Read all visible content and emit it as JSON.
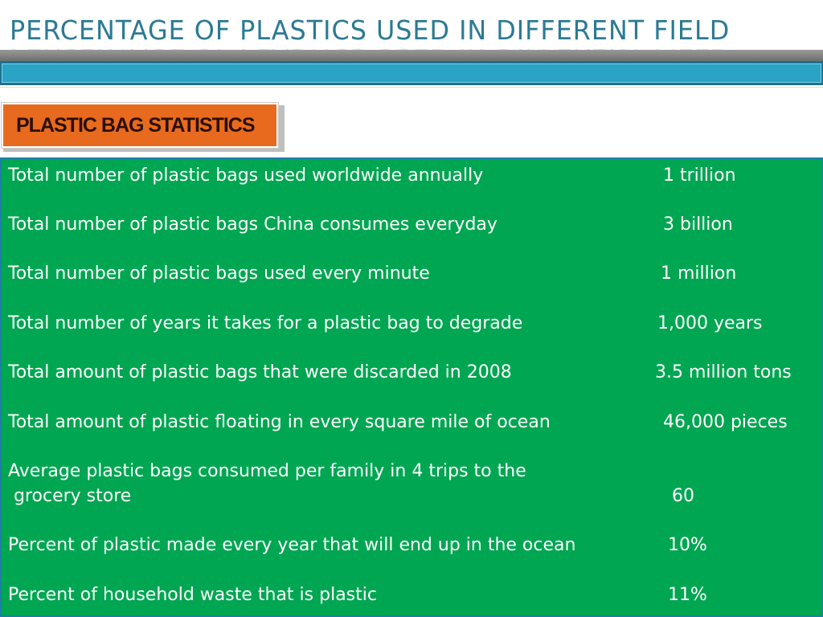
{
  "slide": {
    "title": "PERCENTAGE OF PLASTICS USED IN DIFFERENT FIELD",
    "badge": "PLASTIC BAG STATISTICS"
  },
  "stats": [
    {
      "label": "Total number of plastic bags used worldwide annually",
      "value": "1 trillion"
    },
    {
      "label": "Total number of plastic bags China consumes everyday",
      "value": "3 billion"
    },
    {
      "label": "Total number of plastic bags used every minute",
      "value": "1 million"
    },
    {
      "label": "Total number of years it takes for a plastic bag to degrade",
      "value": "1,000 years"
    },
    {
      "label": "Total amount of plastic bags that were discarded in 2008",
      "value": "3.5 million tons"
    },
    {
      "label": "Total amount of plastic floating in every square mile of ocean",
      "value": "46,000 pieces"
    },
    {
      "label": "Average plastic bags consumed per family in 4 trips to the\n grocery store",
      "value": "60"
    },
    {
      "label": "Percent of plastic made every year that will end up in the ocean",
      "value": "10%"
    },
    {
      "label": "Percent of household waste that is plastic",
      "value": "11%"
    }
  ],
  "colors": {
    "title_text": "#2b7a93",
    "accent_blue": "#2aa3c4",
    "badge_orange": "#e86a1e",
    "panel_green": "#00a651"
  }
}
